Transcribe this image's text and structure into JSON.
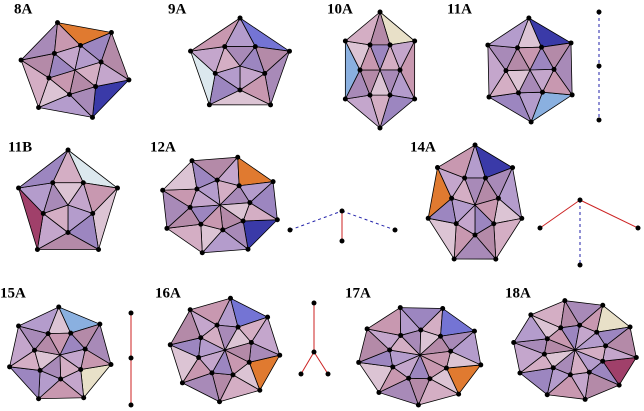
{
  "labels": [
    "8A",
    "9A",
    "10A",
    "11A",
    "11B",
    "12A",
    "14A",
    "15A",
    "16A",
    "17A",
    "18A"
  ]
}
